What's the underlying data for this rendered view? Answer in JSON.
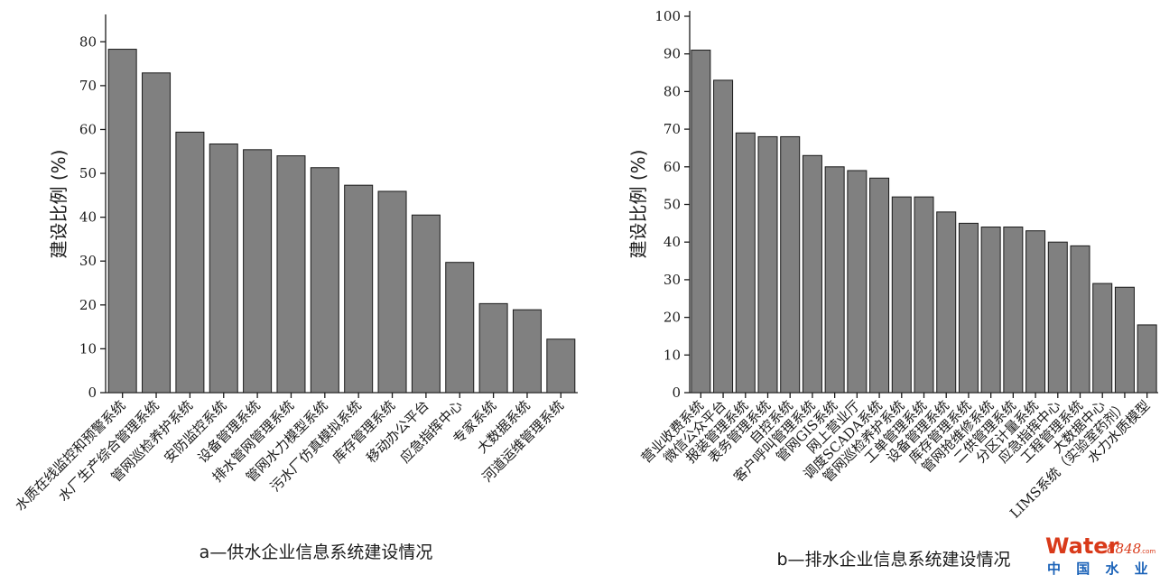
{
  "watermark": {
    "main": "Water",
    "number": "8848",
    "suffix": ".com",
    "sub": "中 国 水 业 网"
  },
  "chart_data": [
    {
      "type": "bar",
      "caption": "a—供水企业信息系统建设情况",
      "ylabel": "建设比例 (%)",
      "ylim": [
        0,
        85
      ],
      "yticks": [
        0,
        10,
        20,
        30,
        40,
        50,
        60,
        70,
        80
      ],
      "categories": [
        "水质在线监控和预警系统",
        "水厂生产综合管理系统",
        "管网巡检养护系统",
        "安防监控系统",
        "设备管理系统",
        "排水管网管理系统",
        "管网水力模型系统",
        "污水厂仿真模拟系统",
        "库存管理系统",
        "移动办公平台",
        "应急指挥中心",
        "专家系统",
        "大数据系统",
        "河道运维管理系统"
      ],
      "values": [
        78.3,
        72.9,
        59.4,
        56.7,
        55.4,
        54.0,
        51.3,
        47.3,
        45.9,
        40.5,
        29.7,
        20.3,
        18.9,
        12.2
      ]
    },
    {
      "type": "bar",
      "caption": "b—排水企业信息系统建设情况",
      "ylabel": "建设比例 (%)",
      "ylim": [
        0,
        100
      ],
      "yticks": [
        0,
        10,
        20,
        30,
        40,
        50,
        60,
        70,
        80,
        90,
        100
      ],
      "categories": [
        "营业收费系统",
        "微信公众平台",
        "报装管理系统",
        "表务管理系统",
        "自控系统",
        "客户呼叫管理系统",
        "管网GIS系统",
        "网上营业厅",
        "调度SCADA系统",
        "管网巡检养护系统",
        "工单管理系统",
        "设备管理系统",
        "库存管理系统",
        "管网抢维修系统",
        "二供管理系统",
        "分区计量系统",
        "应急指挥中心",
        "工程管理系统",
        "大数据中心",
        "LIMS系统（实验室药剂）",
        "水力水质模型"
      ],
      "values": [
        91,
        83,
        69,
        68,
        68,
        63,
        60,
        59,
        57,
        52,
        52,
        48,
        45,
        44,
        44,
        43,
        40,
        39,
        29,
        28,
        18
      ]
    }
  ]
}
